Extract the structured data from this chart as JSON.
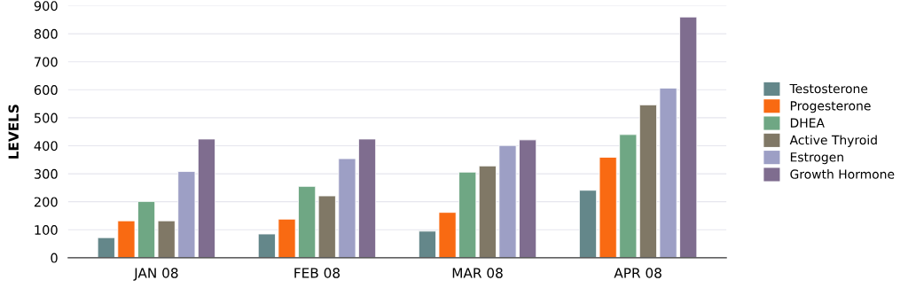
{
  "chart_data": {
    "type": "bar",
    "ylabel": "LEVELS",
    "categories": [
      "JAN 08",
      "FEB 08",
      "MAR 08",
      "APR 08"
    ],
    "series": [
      {
        "name": "Testosterone",
        "color": "#64878a",
        "values": [
          72,
          85,
          95,
          241
        ]
      },
      {
        "name": "Progesterone",
        "color": "#f96a12",
        "values": [
          132,
          138,
          162,
          359
        ]
      },
      {
        "name": "DHEA",
        "color": "#6fa784",
        "values": [
          201,
          255,
          306,
          440
        ]
      },
      {
        "name": "Active Thyroid",
        "color": "#807866",
        "values": [
          132,
          221,
          328,
          546
        ]
      },
      {
        "name": "Estrogen",
        "color": "#9d9fc5",
        "values": [
          308,
          354,
          401,
          606
        ]
      },
      {
        "name": "Growth Hormone",
        "color": "#7f6d8f",
        "values": [
          424,
          424,
          421,
          860
        ]
      }
    ],
    "ylim": [
      0,
      900
    ],
    "yticks": [
      0,
      100,
      200,
      300,
      400,
      500,
      600,
      700,
      800,
      900
    ],
    "grid": "y",
    "legend": "right"
  }
}
